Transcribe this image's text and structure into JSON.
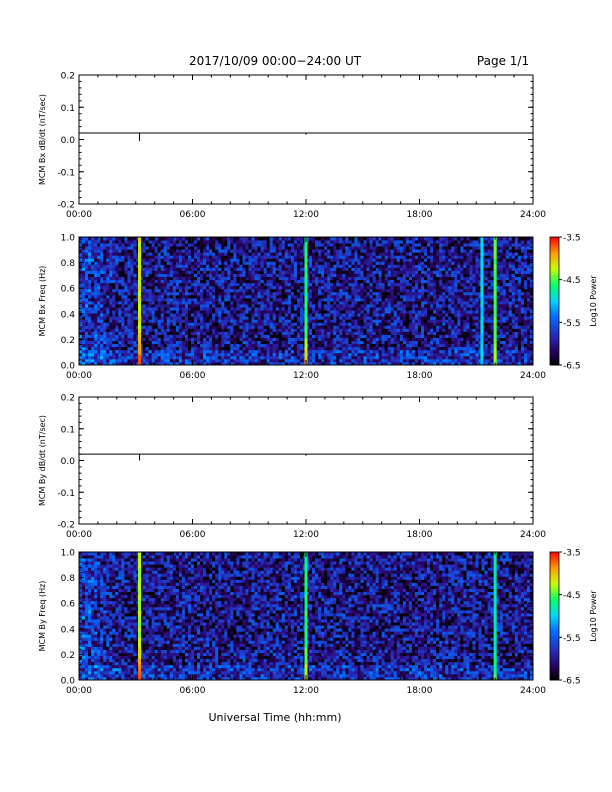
{
  "header": {
    "title": "2017/10/09  00:00−24:00 UT",
    "page": "Page 1/1"
  },
  "x_axis": {
    "ticks": [
      "00:00",
      "06:00",
      "12:00",
      "18:00",
      "24:00"
    ],
    "label": "Universal Time (hh:mm)"
  },
  "colorbar": {
    "label": "Log10 Power",
    "ticks": [
      "-3.5",
      "-4.5",
      "-5.5",
      "-6.5"
    ],
    "range": [
      -6.5,
      -3.5
    ]
  },
  "chart_data": [
    {
      "type": "line",
      "ylabel": "MCM Bx dB/dt (nT/sec)",
      "xlim_hours": [
        0,
        24
      ],
      "ylim": [
        -0.2,
        0.2
      ],
      "yticks": [
        "0.2",
        "0.1",
        "0.0",
        "-0.1",
        "-0.2"
      ],
      "baseline": 0.02,
      "spikes": [
        {
          "hour": 3.2,
          "from": 0.02,
          "to": -0.005
        },
        {
          "hour": 12.0,
          "from": 0.02,
          "to": 0.015
        }
      ]
    },
    {
      "type": "heatmap",
      "ylabel": "MCM Bx Freq (Hz)",
      "xlim_hours": [
        0,
        24
      ],
      "ylim": [
        0,
        1
      ],
      "yticks": [
        "1.0",
        "0.8",
        "0.6",
        "0.4",
        "0.2",
        "0.0"
      ],
      "background_level": -6.0,
      "bright_columns": [
        {
          "hour": 3.2,
          "level": -4.2,
          "low_freq_level": -3.6
        },
        {
          "hour": 12.0,
          "level": -4.6,
          "low_freq_level": -4.0
        },
        {
          "hour": 21.3,
          "level": -5.0,
          "low_freq_level": -5.0
        },
        {
          "hour": 22.0,
          "level": -4.5,
          "low_freq_level": -4.3
        }
      ]
    },
    {
      "type": "line",
      "ylabel": "MCM By dB/dt (nT/sec)",
      "xlim_hours": [
        0,
        24
      ],
      "ylim": [
        -0.2,
        0.2
      ],
      "yticks": [
        "0.2",
        "0.1",
        "0.0",
        "-0.1",
        "-0.2"
      ],
      "baseline": 0.02,
      "spikes": [
        {
          "hour": 3.2,
          "from": 0.02,
          "to": 0.0
        },
        {
          "hour": 12.0,
          "from": 0.02,
          "to": 0.015
        }
      ]
    },
    {
      "type": "heatmap",
      "ylabel": "MCM By Freq (Hz)",
      "xlim_hours": [
        0,
        24
      ],
      "ylim": [
        0,
        1
      ],
      "yticks": [
        "1.0",
        "0.8",
        "0.6",
        "0.4",
        "0.2",
        "0.0"
      ],
      "background_level": -6.0,
      "bright_columns": [
        {
          "hour": 3.2,
          "level": -4.3,
          "low_freq_level": -3.7
        },
        {
          "hour": 12.0,
          "level": -4.6,
          "low_freq_level": -4.2
        },
        {
          "hour": 22.0,
          "level": -4.8,
          "low_freq_level": -4.5
        }
      ]
    }
  ]
}
